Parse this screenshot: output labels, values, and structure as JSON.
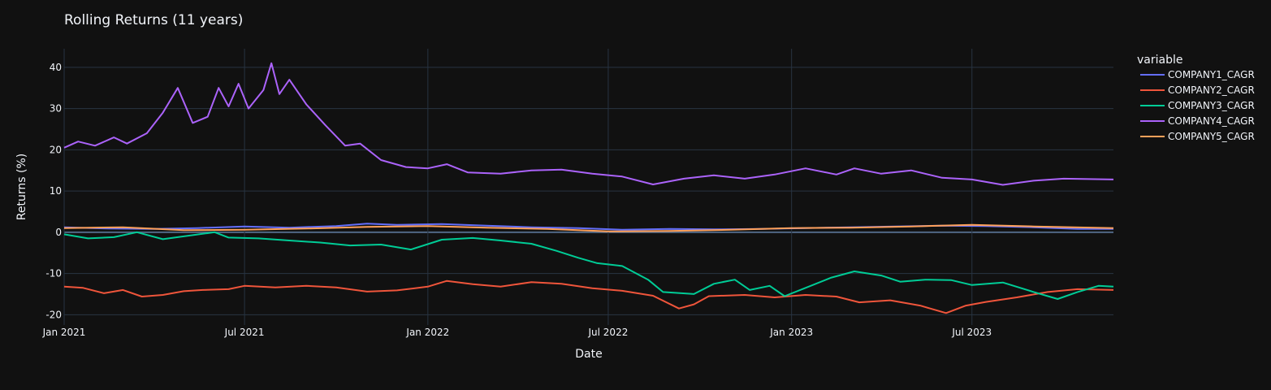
{
  "chart_data": {
    "type": "line",
    "title": "Rolling Returns (11 years)",
    "xlabel": "Date",
    "ylabel": "Returns (%)",
    "x_range": [
      "2021-01-01",
      "2023-11-20"
    ],
    "ylim": [
      -22.5,
      44.5
    ],
    "y_ticks": [
      -20,
      -10,
      0,
      10,
      20,
      30,
      40
    ],
    "x_ticks": [
      {
        "date": "2021-01-01",
        "label": "Jan 2021"
      },
      {
        "date": "2021-07-01",
        "label": "Jul 2021"
      },
      {
        "date": "2022-01-01",
        "label": "Jan 2022"
      },
      {
        "date": "2022-07-01",
        "label": "Jul 2022"
      },
      {
        "date": "2023-01-01",
        "label": "Jan 2023"
      },
      {
        "date": "2023-07-01",
        "label": "Jul 2023"
      }
    ],
    "grid": true,
    "legend": {
      "title": "variable",
      "placement": "right"
    },
    "series": [
      {
        "name": "COMPANY1_CAGR",
        "color": "#636efa",
        "points": [
          [
            "2021-01-01",
            1.2
          ],
          [
            "2021-02-15",
            0.9
          ],
          [
            "2021-04-01",
            0.8
          ],
          [
            "2021-05-15",
            1.0
          ],
          [
            "2021-07-01",
            1.4
          ],
          [
            "2021-08-15",
            1.1
          ],
          [
            "2021-10-01",
            1.5
          ],
          [
            "2021-11-01",
            2.1
          ],
          [
            "2021-12-01",
            1.8
          ],
          [
            "2022-01-15",
            2.0
          ],
          [
            "2022-03-01",
            1.6
          ],
          [
            "2022-04-15",
            1.2
          ],
          [
            "2022-06-01",
            1.0
          ],
          [
            "2022-07-15",
            0.6
          ],
          [
            "2022-09-01",
            0.8
          ],
          [
            "2022-10-15",
            0.7
          ],
          [
            "2022-12-01",
            0.8
          ],
          [
            "2023-01-15",
            1.0
          ],
          [
            "2023-03-01",
            1.2
          ],
          [
            "2023-04-15",
            1.4
          ],
          [
            "2023-06-01",
            1.6
          ],
          [
            "2023-07-15",
            1.5
          ],
          [
            "2023-09-01",
            1.2
          ],
          [
            "2023-10-15",
            0.8
          ],
          [
            "2023-11-20",
            0.8
          ]
        ]
      },
      {
        "name": "COMPANY2_CAGR",
        "color": "#ef553b",
        "points": [
          [
            "2021-01-01",
            -13.2
          ],
          [
            "2021-01-20",
            -13.5
          ],
          [
            "2021-02-10",
            -14.8
          ],
          [
            "2021-03-01",
            -14.0
          ],
          [
            "2021-03-20",
            -15.6
          ],
          [
            "2021-04-10",
            -15.2
          ],
          [
            "2021-05-01",
            -14.3
          ],
          [
            "2021-05-20",
            -14.0
          ],
          [
            "2021-06-15",
            -13.8
          ],
          [
            "2021-07-01",
            -13.0
          ],
          [
            "2021-08-01",
            -13.4
          ],
          [
            "2021-09-01",
            -13.0
          ],
          [
            "2021-10-01",
            -13.4
          ],
          [
            "2021-11-01",
            -14.4
          ],
          [
            "2021-12-01",
            -14.1
          ],
          [
            "2022-01-01",
            -13.2
          ],
          [
            "2022-01-20",
            -11.8
          ],
          [
            "2022-02-15",
            -12.6
          ],
          [
            "2022-03-15",
            -13.2
          ],
          [
            "2022-04-15",
            -12.1
          ],
          [
            "2022-05-15",
            -12.5
          ],
          [
            "2022-06-15",
            -13.6
          ],
          [
            "2022-07-15",
            -14.2
          ],
          [
            "2022-08-15",
            -15.4
          ],
          [
            "2022-09-10",
            -18.5
          ],
          [
            "2022-09-25",
            -17.5
          ],
          [
            "2022-10-10",
            -15.5
          ],
          [
            "2022-11-15",
            -15.2
          ],
          [
            "2022-12-15",
            -15.8
          ],
          [
            "2023-01-15",
            -15.2
          ],
          [
            "2023-02-15",
            -15.6
          ],
          [
            "2023-03-10",
            -17.0
          ],
          [
            "2023-04-10",
            -16.5
          ],
          [
            "2023-05-10",
            -17.8
          ],
          [
            "2023-06-05",
            -19.6
          ],
          [
            "2023-06-25",
            -17.8
          ],
          [
            "2023-07-15",
            -16.9
          ],
          [
            "2023-08-15",
            -15.8
          ],
          [
            "2023-09-15",
            -14.5
          ],
          [
            "2023-10-15",
            -13.8
          ],
          [
            "2023-11-20",
            -14.0
          ]
        ]
      },
      {
        "name": "COMPANY3_CAGR",
        "color": "#00cc96",
        "points": [
          [
            "2021-01-01",
            -0.5
          ],
          [
            "2021-01-25",
            -1.5
          ],
          [
            "2021-02-20",
            -1.2
          ],
          [
            "2021-03-15",
            0.0
          ],
          [
            "2021-04-10",
            -1.7
          ],
          [
            "2021-05-01",
            -1.0
          ],
          [
            "2021-06-01",
            0.0
          ],
          [
            "2021-06-15",
            -1.3
          ],
          [
            "2021-07-15",
            -1.5
          ],
          [
            "2021-08-15",
            -2.0
          ],
          [
            "2021-09-15",
            -2.5
          ],
          [
            "2021-10-15",
            -3.2
          ],
          [
            "2021-11-15",
            -3.0
          ],
          [
            "2021-12-15",
            -4.2
          ],
          [
            "2022-01-15",
            -1.8
          ],
          [
            "2022-02-15",
            -1.4
          ],
          [
            "2022-03-15",
            -2.0
          ],
          [
            "2022-04-15",
            -2.8
          ],
          [
            "2022-05-10",
            -4.5
          ],
          [
            "2022-06-01",
            -6.2
          ],
          [
            "2022-06-20",
            -7.5
          ],
          [
            "2022-07-15",
            -8.2
          ],
          [
            "2022-08-10",
            -11.5
          ],
          [
            "2022-08-25",
            -14.5
          ],
          [
            "2022-09-25",
            -15.0
          ],
          [
            "2022-10-15",
            -12.5
          ],
          [
            "2022-11-05",
            -11.5
          ],
          [
            "2022-11-20",
            -14.0
          ],
          [
            "2022-12-10",
            -13.0
          ],
          [
            "2022-12-25",
            -15.5
          ],
          [
            "2023-01-15",
            -13.5
          ],
          [
            "2023-02-10",
            -11.0
          ],
          [
            "2023-03-05",
            -9.5
          ],
          [
            "2023-04-01",
            -10.5
          ],
          [
            "2023-04-20",
            -12.0
          ],
          [
            "2023-05-15",
            -11.5
          ],
          [
            "2023-06-10",
            -11.6
          ],
          [
            "2023-07-01",
            -12.8
          ],
          [
            "2023-08-01",
            -12.2
          ],
          [
            "2023-09-01",
            -14.5
          ],
          [
            "2023-09-25",
            -16.2
          ],
          [
            "2023-10-15",
            -14.5
          ],
          [
            "2023-11-05",
            -13.0
          ],
          [
            "2023-11-20",
            -13.2
          ]
        ]
      },
      {
        "name": "COMPANY4_CAGR",
        "color": "#ab63fa",
        "points": [
          [
            "2021-01-01",
            20.5
          ],
          [
            "2021-01-15",
            22.0
          ],
          [
            "2021-02-01",
            21.0
          ],
          [
            "2021-02-20",
            23.0
          ],
          [
            "2021-03-05",
            21.5
          ],
          [
            "2021-03-25",
            24.0
          ],
          [
            "2021-04-10",
            29.0
          ],
          [
            "2021-04-25",
            35.0
          ],
          [
            "2021-05-10",
            26.5
          ],
          [
            "2021-05-25",
            28.0
          ],
          [
            "2021-06-05",
            35.0
          ],
          [
            "2021-06-15",
            30.5
          ],
          [
            "2021-06-25",
            36.0
          ],
          [
            "2021-07-05",
            30.0
          ],
          [
            "2021-07-20",
            34.5
          ],
          [
            "2021-07-28",
            41.0
          ],
          [
            "2021-08-05",
            33.5
          ],
          [
            "2021-08-15",
            37.0
          ],
          [
            "2021-09-01",
            31.0
          ],
          [
            "2021-09-20",
            26.0
          ],
          [
            "2021-10-10",
            21.0
          ],
          [
            "2021-10-25",
            21.5
          ],
          [
            "2021-11-15",
            17.5
          ],
          [
            "2021-12-10",
            15.8
          ],
          [
            "2022-01-01",
            15.5
          ],
          [
            "2022-01-20",
            16.5
          ],
          [
            "2022-02-10",
            14.5
          ],
          [
            "2022-03-15",
            14.2
          ],
          [
            "2022-04-15",
            15.0
          ],
          [
            "2022-05-15",
            15.2
          ],
          [
            "2022-06-15",
            14.2
          ],
          [
            "2022-07-15",
            13.5
          ],
          [
            "2022-08-15",
            11.6
          ],
          [
            "2022-09-15",
            13.0
          ],
          [
            "2022-10-15",
            13.8
          ],
          [
            "2022-11-15",
            13.0
          ],
          [
            "2022-12-15",
            14.0
          ],
          [
            "2023-01-15",
            15.5
          ],
          [
            "2023-02-15",
            14.0
          ],
          [
            "2023-03-05",
            15.5
          ],
          [
            "2023-04-01",
            14.2
          ],
          [
            "2023-05-01",
            15.0
          ],
          [
            "2023-06-01",
            13.2
          ],
          [
            "2023-07-01",
            12.8
          ],
          [
            "2023-08-01",
            11.5
          ],
          [
            "2023-09-01",
            12.5
          ],
          [
            "2023-10-01",
            13.0
          ],
          [
            "2023-11-20",
            12.8
          ]
        ]
      },
      {
        "name": "COMPANY5_CAGR",
        "color": "#ffa15a",
        "points": [
          [
            "2021-01-01",
            1.0
          ],
          [
            "2021-03-01",
            1.2
          ],
          [
            "2021-05-01",
            0.5
          ],
          [
            "2021-07-01",
            0.6
          ],
          [
            "2021-09-01",
            0.9
          ],
          [
            "2021-11-01",
            1.3
          ],
          [
            "2022-01-01",
            1.5
          ],
          [
            "2022-03-01",
            1.1
          ],
          [
            "2022-05-01",
            0.8
          ],
          [
            "2022-07-01",
            0.2
          ],
          [
            "2022-09-01",
            0.3
          ],
          [
            "2022-11-01",
            0.6
          ],
          [
            "2023-01-01",
            1.0
          ],
          [
            "2023-03-01",
            1.1
          ],
          [
            "2023-05-01",
            1.4
          ],
          [
            "2023-07-01",
            1.8
          ],
          [
            "2023-09-01",
            1.4
          ],
          [
            "2023-11-20",
            1.0
          ]
        ]
      }
    ]
  }
}
